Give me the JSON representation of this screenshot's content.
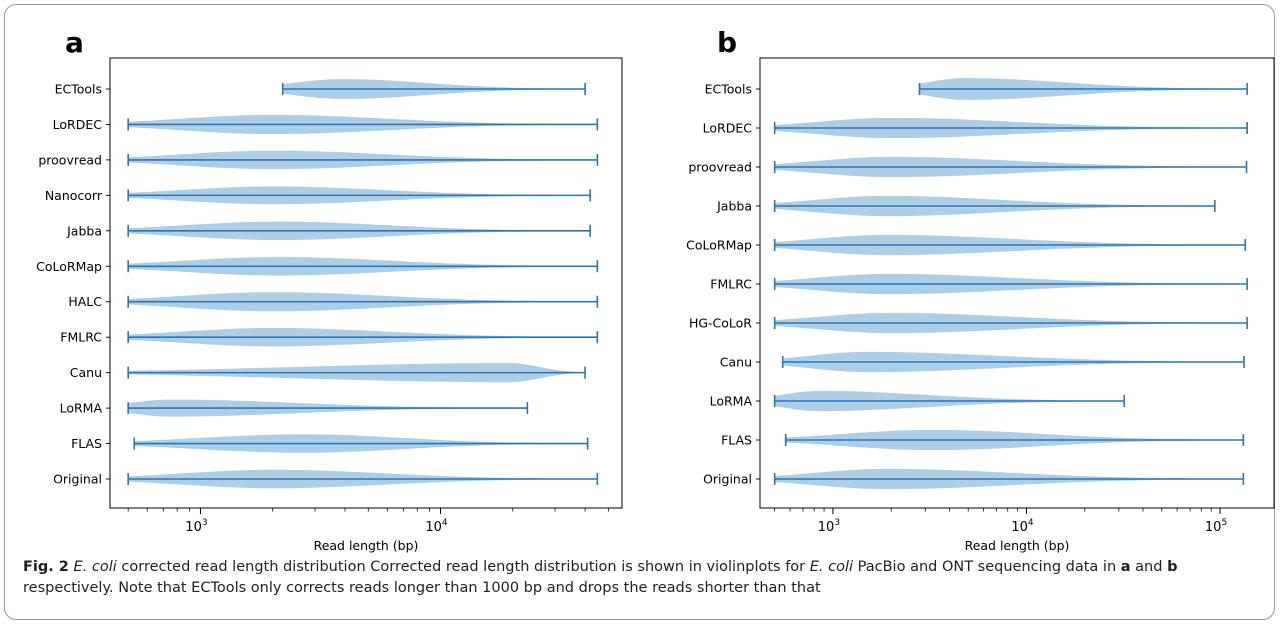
{
  "chart_data": [
    {
      "panel_label": "a",
      "type": "violin",
      "xscale": "log",
      "xlabel": "Read length (bp)",
      "xlim": [
        420,
        57000
      ],
      "xticks": [
        {
          "value": 1000,
          "base": "10",
          "exp": "3"
        },
        {
          "value": 10000,
          "base": "10",
          "exp": "4"
        }
      ],
      "series": [
        {
          "name": "ECTools",
          "min": 2200,
          "max": 40000,
          "peak": 3900,
          "width": 0.28
        },
        {
          "name": "LoRDEC",
          "min": 500,
          "max": 45000,
          "peak": 2000,
          "width": 0.27
        },
        {
          "name": "proovread",
          "min": 500,
          "max": 45000,
          "peak": 2000,
          "width": 0.26
        },
        {
          "name": "Nanocorr",
          "min": 500,
          "max": 42000,
          "peak": 2000,
          "width": 0.25
        },
        {
          "name": "Jabba",
          "min": 500,
          "max": 42000,
          "peak": 2100,
          "width": 0.26
        },
        {
          "name": "CoLoRMap",
          "min": 500,
          "max": 45000,
          "peak": 2100,
          "width": 0.26
        },
        {
          "name": "HALC",
          "min": 500,
          "max": 45000,
          "peak": 2000,
          "width": 0.27
        },
        {
          "name": "FMLRC",
          "min": 500,
          "max": 45000,
          "peak": 2000,
          "width": 0.26
        },
        {
          "name": "Canu",
          "min": 500,
          "max": 40000,
          "peak": 19500,
          "width": 0.27
        },
        {
          "name": "LoRMA",
          "min": 500,
          "max": 23000,
          "peak": 750,
          "width": 0.24
        },
        {
          "name": "FLAS",
          "min": 530,
          "max": 41000,
          "peak": 2700,
          "width": 0.26
        },
        {
          "name": "Original",
          "min": 500,
          "max": 45000,
          "peak": 2000,
          "width": 0.26
        }
      ]
    },
    {
      "panel_label": "b",
      "type": "violin",
      "xscale": "log",
      "xlabel": "Read length (bp)",
      "xlim": [
        420,
        190000
      ],
      "xticks": [
        {
          "value": 1000,
          "base": "10",
          "exp": "3"
        },
        {
          "value": 10000,
          "base": "10",
          "exp": "4"
        },
        {
          "value": 100000,
          "base": "10",
          "exp": "5"
        }
      ],
      "series": [
        {
          "name": "ECTools",
          "min": 2800,
          "max": 138000,
          "peak": 4800,
          "width": 0.28
        },
        {
          "name": "LoRDEC",
          "min": 500,
          "max": 138000,
          "peak": 2000,
          "width": 0.26
        },
        {
          "name": "proovread",
          "min": 500,
          "max": 137000,
          "peak": 2000,
          "width": 0.26
        },
        {
          "name": "Jabba",
          "min": 500,
          "max": 94000,
          "peak": 1900,
          "width": 0.26
        },
        {
          "name": "CoLoRMap",
          "min": 500,
          "max": 135000,
          "peak": 1900,
          "width": 0.26
        },
        {
          "name": "FMLRC",
          "min": 500,
          "max": 138000,
          "peak": 1900,
          "width": 0.26
        },
        {
          "name": "HG-CoLoR",
          "min": 500,
          "max": 138000,
          "peak": 2000,
          "width": 0.26
        },
        {
          "name": "Canu",
          "min": 550,
          "max": 133000,
          "peak": 1500,
          "width": 0.26
        },
        {
          "name": "LoRMA",
          "min": 500,
          "max": 32000,
          "peak": 850,
          "width": 0.26
        },
        {
          "name": "FLAS",
          "min": 570,
          "max": 132000,
          "peak": 3300,
          "width": 0.26
        },
        {
          "name": "Original",
          "min": 500,
          "max": 132000,
          "peak": 1900,
          "width": 0.26
        }
      ]
    }
  ],
  "caption": {
    "fig_label": "Fig. 2",
    "species": "E. coli",
    "title_rest": " corrected read length distribution Corrected read length distribution is shown in violinplots for ",
    "species2": "E. coli",
    "body1": " PacBio and ONT sequencing data in ",
    "label_a": "a",
    "and": " and ",
    "label_b": "b",
    "body2": " respectively. Note that ECTools only corrects reads longer than 1000 bp and drops the reads shorter than that"
  },
  "colors": {
    "fill": "#aecde6",
    "line": "#2b76b0",
    "axis": "#000000"
  }
}
